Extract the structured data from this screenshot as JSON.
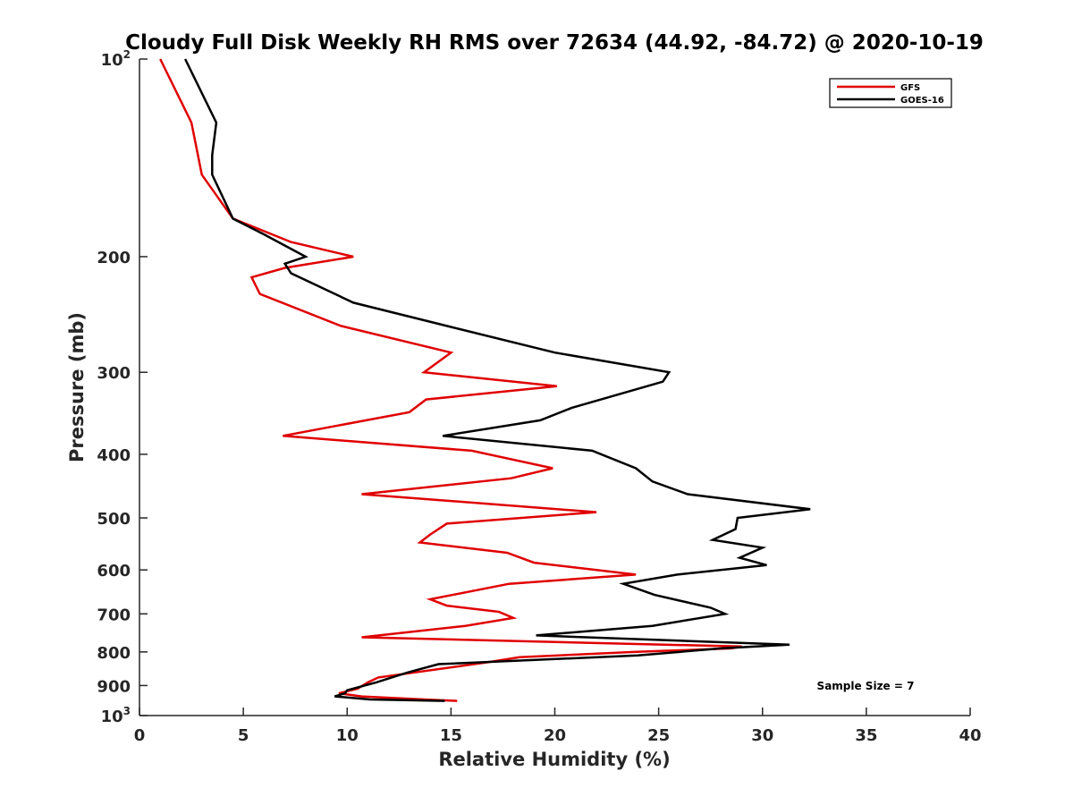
{
  "chart_data": {
    "type": "line",
    "title": "Cloudy Full Disk Weekly RH RMS over 72634 (44.92, -84.72) @ 2020-10-19",
    "xlabel": "Relative Humidity (%)",
    "ylabel": "Pressure (mb)",
    "xlim": [
      0,
      40
    ],
    "ylim": [
      100,
      1000
    ],
    "yscale": "log",
    "y_reversed": true,
    "grid": false,
    "legend_position": "top-right",
    "x_ticks": [
      "0",
      "5",
      "10",
      "15",
      "20",
      "25",
      "30",
      "35",
      "40"
    ],
    "y_ticks": [
      {
        "value": 100,
        "base": "10",
        "exp": "2"
      },
      {
        "value": 200,
        "label": "200"
      },
      {
        "value": 300,
        "label": "300"
      },
      {
        "value": 400,
        "label": "400"
      },
      {
        "value": 500,
        "label": "500"
      },
      {
        "value": 600,
        "label": "600"
      },
      {
        "value": 700,
        "label": "700"
      },
      {
        "value": 800,
        "label": "800"
      },
      {
        "value": 900,
        "label": "900"
      },
      {
        "value": 1000,
        "base": "10",
        "exp": "3"
      }
    ],
    "annotation": "Sample Size = 7",
    "series": [
      {
        "name": "GFS",
        "color": "#e00000",
        "points": [
          [
            1.0,
            100
          ],
          [
            2.5,
            125
          ],
          [
            3.0,
            150
          ],
          [
            4.5,
            175
          ],
          [
            7.3,
            190
          ],
          [
            10.3,
            200
          ],
          [
            7.0,
            208
          ],
          [
            5.4,
            215
          ],
          [
            5.8,
            228
          ],
          [
            9.7,
            255
          ],
          [
            15.0,
            280
          ],
          [
            13.7,
            300
          ],
          [
            20.1,
            315
          ],
          [
            13.8,
            330
          ],
          [
            13.0,
            345
          ],
          [
            6.9,
            375
          ],
          [
            16.0,
            395
          ],
          [
            19.9,
            420
          ],
          [
            17.9,
            435
          ],
          [
            10.7,
            460
          ],
          [
            22.0,
            490
          ],
          [
            14.8,
            510
          ],
          [
            14.0,
            530
          ],
          [
            13.5,
            545
          ],
          [
            17.7,
            565
          ],
          [
            19.0,
            585
          ],
          [
            23.9,
            610
          ],
          [
            17.8,
            630
          ],
          [
            14.0,
            665
          ],
          [
            14.8,
            680
          ],
          [
            17.3,
            695
          ],
          [
            18.0,
            710
          ],
          [
            15.7,
            730
          ],
          [
            10.7,
            760
          ],
          [
            29.0,
            785
          ],
          [
            28.5,
            790
          ],
          [
            23.8,
            800
          ],
          [
            18.3,
            815
          ],
          [
            16.7,
            830
          ],
          [
            11.5,
            875
          ],
          [
            11.0,
            890
          ],
          [
            10.5,
            910
          ],
          [
            9.6,
            925
          ],
          [
            10.7,
            935
          ],
          [
            13.7,
            945
          ],
          [
            15.3,
            950
          ]
        ]
      },
      {
        "name": "GOES-16",
        "color": "#000000",
        "points": [
          [
            2.2,
            100
          ],
          [
            3.7,
            125
          ],
          [
            3.5,
            140
          ],
          [
            3.5,
            150
          ],
          [
            4.5,
            175
          ],
          [
            6.0,
            185
          ],
          [
            8.0,
            200
          ],
          [
            7.0,
            205
          ],
          [
            7.3,
            212
          ],
          [
            10.3,
            235
          ],
          [
            14.8,
            255
          ],
          [
            20.0,
            280
          ],
          [
            25.5,
            300
          ],
          [
            25.2,
            310
          ],
          [
            20.8,
            340
          ],
          [
            19.3,
            355
          ],
          [
            14.6,
            375
          ],
          [
            21.8,
            395
          ],
          [
            23.9,
            420
          ],
          [
            24.7,
            440
          ],
          [
            26.4,
            460
          ],
          [
            32.3,
            485
          ],
          [
            28.8,
            500
          ],
          [
            28.7,
            520
          ],
          [
            27.6,
            540
          ],
          [
            30.0,
            555
          ],
          [
            28.9,
            575
          ],
          [
            30.2,
            590
          ],
          [
            25.9,
            610
          ],
          [
            23.3,
            630
          ],
          [
            24.8,
            655
          ],
          [
            27.5,
            685
          ],
          [
            28.2,
            700
          ],
          [
            24.7,
            730
          ],
          [
            19.1,
            755
          ],
          [
            31.3,
            780
          ],
          [
            28.0,
            790
          ],
          [
            24.0,
            810
          ],
          [
            14.4,
            835
          ],
          [
            12.9,
            860
          ],
          [
            11.4,
            890
          ],
          [
            10.0,
            915
          ],
          [
            9.9,
            925
          ],
          [
            9.4,
            935
          ],
          [
            11.1,
            945
          ],
          [
            14.7,
            950
          ]
        ]
      }
    ]
  }
}
